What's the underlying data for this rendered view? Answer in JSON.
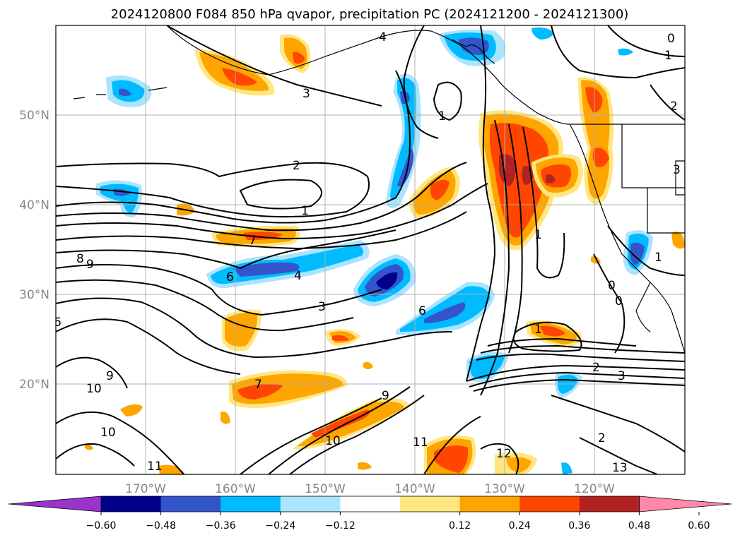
{
  "title": "2024120800 F084 850 hPa qvapor, precipitation PC (2024121200 - 2024121300)",
  "map": {
    "lon_ticks": [
      "170°W",
      "160°W",
      "150°W",
      "140°W",
      "130°W",
      "120°W"
    ],
    "lat_ticks": [
      "50°N",
      "40°N",
      "30°N",
      "20°N"
    ],
    "lon_range": [
      -180,
      -110
    ],
    "lat_range": [
      10,
      60
    ],
    "grid": true
  },
  "colorbar": {
    "ticks": [
      "−0.60",
      "−0.48",
      "−0.36",
      "−0.24",
      "−0.12",
      "0.12",
      "0.24",
      "0.36",
      "0.48",
      "0.60"
    ],
    "colors": [
      "#9933cc",
      "#00008b",
      "#3355cc",
      "#00bbff",
      "#aae4ff",
      "#ffffff",
      "#ffe680",
      "#ffa500",
      "#ff4500",
      "#b22222",
      "#ff88aa"
    ],
    "extend": "both"
  },
  "contour_labels": [
    "4",
    "3",
    "2",
    "1",
    "7",
    "8",
    "9",
    "6",
    "4",
    "3",
    "6",
    "1",
    "0",
    "1",
    "2",
    "3",
    "1",
    "12",
    "13",
    "10",
    "10",
    "11",
    "9",
    "9",
    "11",
    "10",
    "7",
    "1",
    "2",
    "0",
    "6",
    "0",
    "3",
    "2",
    "1"
  ],
  "precip_colors": {
    "neg_light": "#aae4ff",
    "neg_mid": "#00bbff",
    "neg_dark": "#3355cc",
    "neg_darkest": "#00008b",
    "pos_light": "#ffe680",
    "pos_mid": "#ffa500",
    "pos_dark": "#ff4500",
    "pos_darkest": "#b22222"
  }
}
